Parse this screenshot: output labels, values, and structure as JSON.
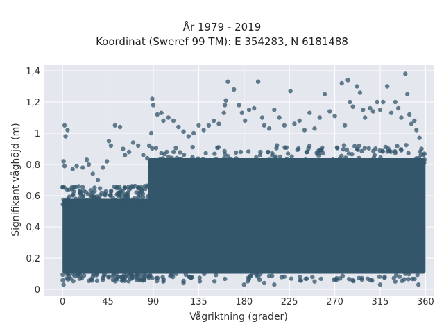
{
  "chart_data": {
    "type": "scatter",
    "title_lines": [
      "År 1979 - 2019",
      "Koordinat (Sweref 99 TM): E 354283, N 6181488"
    ],
    "xlabel": "Vågriktning (grader)",
    "ylabel": "Signifikant våghöjd (m)",
    "xlim": [
      -18,
      368
    ],
    "ylim": [
      -0.04,
      1.44
    ],
    "xticks": [
      0,
      45,
      90,
      135,
      180,
      225,
      270,
      315,
      360
    ],
    "xtick_labels": [
      "0",
      "45",
      "90",
      "135",
      "180",
      "225",
      "270",
      "315",
      "360"
    ],
    "yticks": [
      0,
      0.2,
      0.4,
      0.6,
      0.8,
      1.0,
      1.2,
      1.4
    ],
    "ytick_labels": [
      "0",
      "0,2",
      "0,4",
      "0,6",
      "0,8",
      "1",
      "1,2",
      "1,4"
    ],
    "grid": true,
    "marker_color": "#33566b",
    "background_color": "#e5e7ef",
    "dense_bands": [
      {
        "x": [
          0,
          85
        ],
        "y": [
          0.1,
          0.58
        ]
      },
      {
        "x": [
          85,
          360
        ],
        "y": [
          0.1,
          0.84
        ]
      }
    ],
    "points": [
      [
        2,
        1.05
      ],
      [
        5,
        1.02
      ],
      [
        3,
        0.98
      ],
      [
        1,
        0.82
      ],
      [
        2,
        0.79
      ],
      [
        10,
        0.77
      ],
      [
        14,
        0.79
      ],
      [
        20,
        0.78
      ],
      [
        24,
        0.83
      ],
      [
        26,
        0.8
      ],
      [
        30,
        0.74
      ],
      [
        35,
        0.7
      ],
      [
        40,
        0.78
      ],
      [
        44,
        0.82
      ],
      [
        46,
        0.95
      ],
      [
        48,
        0.92
      ],
      [
        52,
        1.05
      ],
      [
        57,
        1.04
      ],
      [
        60,
        0.9
      ],
      [
        62,
        0.86
      ],
      [
        66,
        0.88
      ],
      [
        70,
        0.94
      ],
      [
        75,
        0.92
      ],
      [
        80,
        0.86
      ],
      [
        84,
        0.84
      ],
      [
        86,
        0.92
      ],
      [
        88,
        1.0
      ],
      [
        89,
        1.22
      ],
      [
        90,
        1.18
      ],
      [
        94,
        1.12
      ],
      [
        98,
        1.13
      ],
      [
        100,
        1.08
      ],
      [
        105,
        1.1
      ],
      [
        110,
        1.08
      ],
      [
        115,
        1.04
      ],
      [
        120,
        1.01
      ],
      [
        125,
        0.98
      ],
      [
        130,
        1.0
      ],
      [
        135,
        1.05
      ],
      [
        140,
        1.02
      ],
      [
        145,
        1.05
      ],
      [
        150,
        1.08
      ],
      [
        155,
        1.06
      ],
      [
        160,
        1.13
      ],
      [
        161,
        1.18
      ],
      [
        162,
        1.21
      ],
      [
        164,
        1.33
      ],
      [
        170,
        1.28
      ],
      [
        175,
        1.18
      ],
      [
        178,
        1.13
      ],
      [
        181,
        1.08
      ],
      [
        185,
        1.15
      ],
      [
        190,
        1.16
      ],
      [
        194,
        1.33
      ],
      [
        198,
        1.1
      ],
      [
        200,
        1.05
      ],
      [
        205,
        1.03
      ],
      [
        210,
        1.15
      ],
      [
        215,
        1.1
      ],
      [
        220,
        1.05
      ],
      [
        226,
        1.27
      ],
      [
        230,
        1.06
      ],
      [
        235,
        1.08
      ],
      [
        240,
        1.02
      ],
      [
        245,
        1.13
      ],
      [
        250,
        1.03
      ],
      [
        255,
        1.1
      ],
      [
        260,
        1.25
      ],
      [
        265,
        1.14
      ],
      [
        270,
        1.11
      ],
      [
        277,
        1.32
      ],
      [
        280,
        1.05
      ],
      [
        283,
        1.34
      ],
      [
        285,
        1.2
      ],
      [
        288,
        1.17
      ],
      [
        292,
        1.3
      ],
      [
        295,
        1.26
      ],
      [
        298,
        1.15
      ],
      [
        300,
        1.1
      ],
      [
        305,
        1.16
      ],
      [
        308,
        1.14
      ],
      [
        312,
        1.2
      ],
      [
        315,
        1.15
      ],
      [
        318,
        1.2
      ],
      [
        322,
        1.3
      ],
      [
        326,
        1.13
      ],
      [
        330,
        1.2
      ],
      [
        333,
        1.16
      ],
      [
        336,
        1.1
      ],
      [
        340,
        1.38
      ],
      [
        342,
        1.25
      ],
      [
        344,
        1.12
      ],
      [
        346,
        1.06
      ],
      [
        349,
        1.08
      ],
      [
        351,
        1.02
      ],
      [
        354,
        0.97
      ],
      [
        356,
        0.9
      ],
      [
        358,
        0.86
      ],
      [
        359,
        0.83
      ],
      [
        1,
        0.03
      ],
      [
        100,
        0.05
      ],
      [
        120,
        0.04
      ],
      [
        180,
        0.03
      ],
      [
        200,
        0.04
      ],
      [
        210,
        0.03
      ],
      [
        250,
        0.05
      ],
      [
        315,
        0.03
      ],
      [
        330,
        0.05
      ],
      [
        353,
        0.03
      ]
    ]
  }
}
